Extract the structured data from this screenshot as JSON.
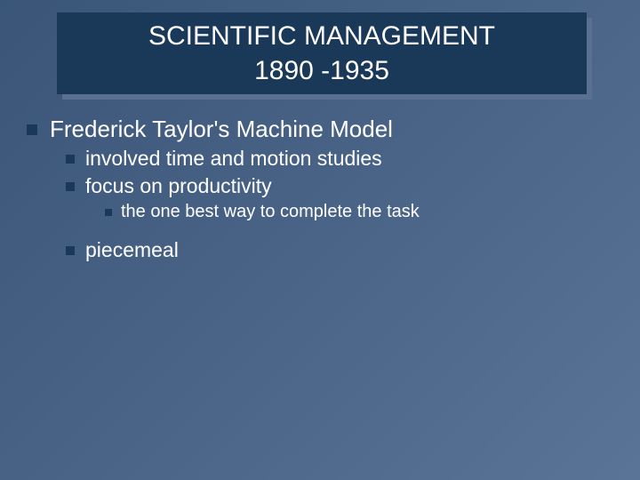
{
  "colors": {
    "background_gradient_start": "#3a5578",
    "background_gradient_mid": "#4a6488",
    "background_gradient_end": "#5a7498",
    "title_box_bg": "#1a3858",
    "title_shadow": "#5a7090",
    "bullet_color": "#1a3858",
    "text_color": "#ffffff"
  },
  "typography": {
    "font_family": "Verdana",
    "title_fontsize": 30,
    "level1_fontsize": 26,
    "level2_fontsize": 23,
    "level3_fontsize": 20
  },
  "title": {
    "line1": "SCIENTIFIC MANAGEMENT",
    "line2": "1890 -1935"
  },
  "bullets": {
    "l1_1": "Frederick Taylor's Machine Model",
    "l2_1": "involved time and motion studies",
    "l2_2": "focus on productivity",
    "l3_1": "the one best way to complete the task",
    "l2_3": "piecemeal"
  }
}
